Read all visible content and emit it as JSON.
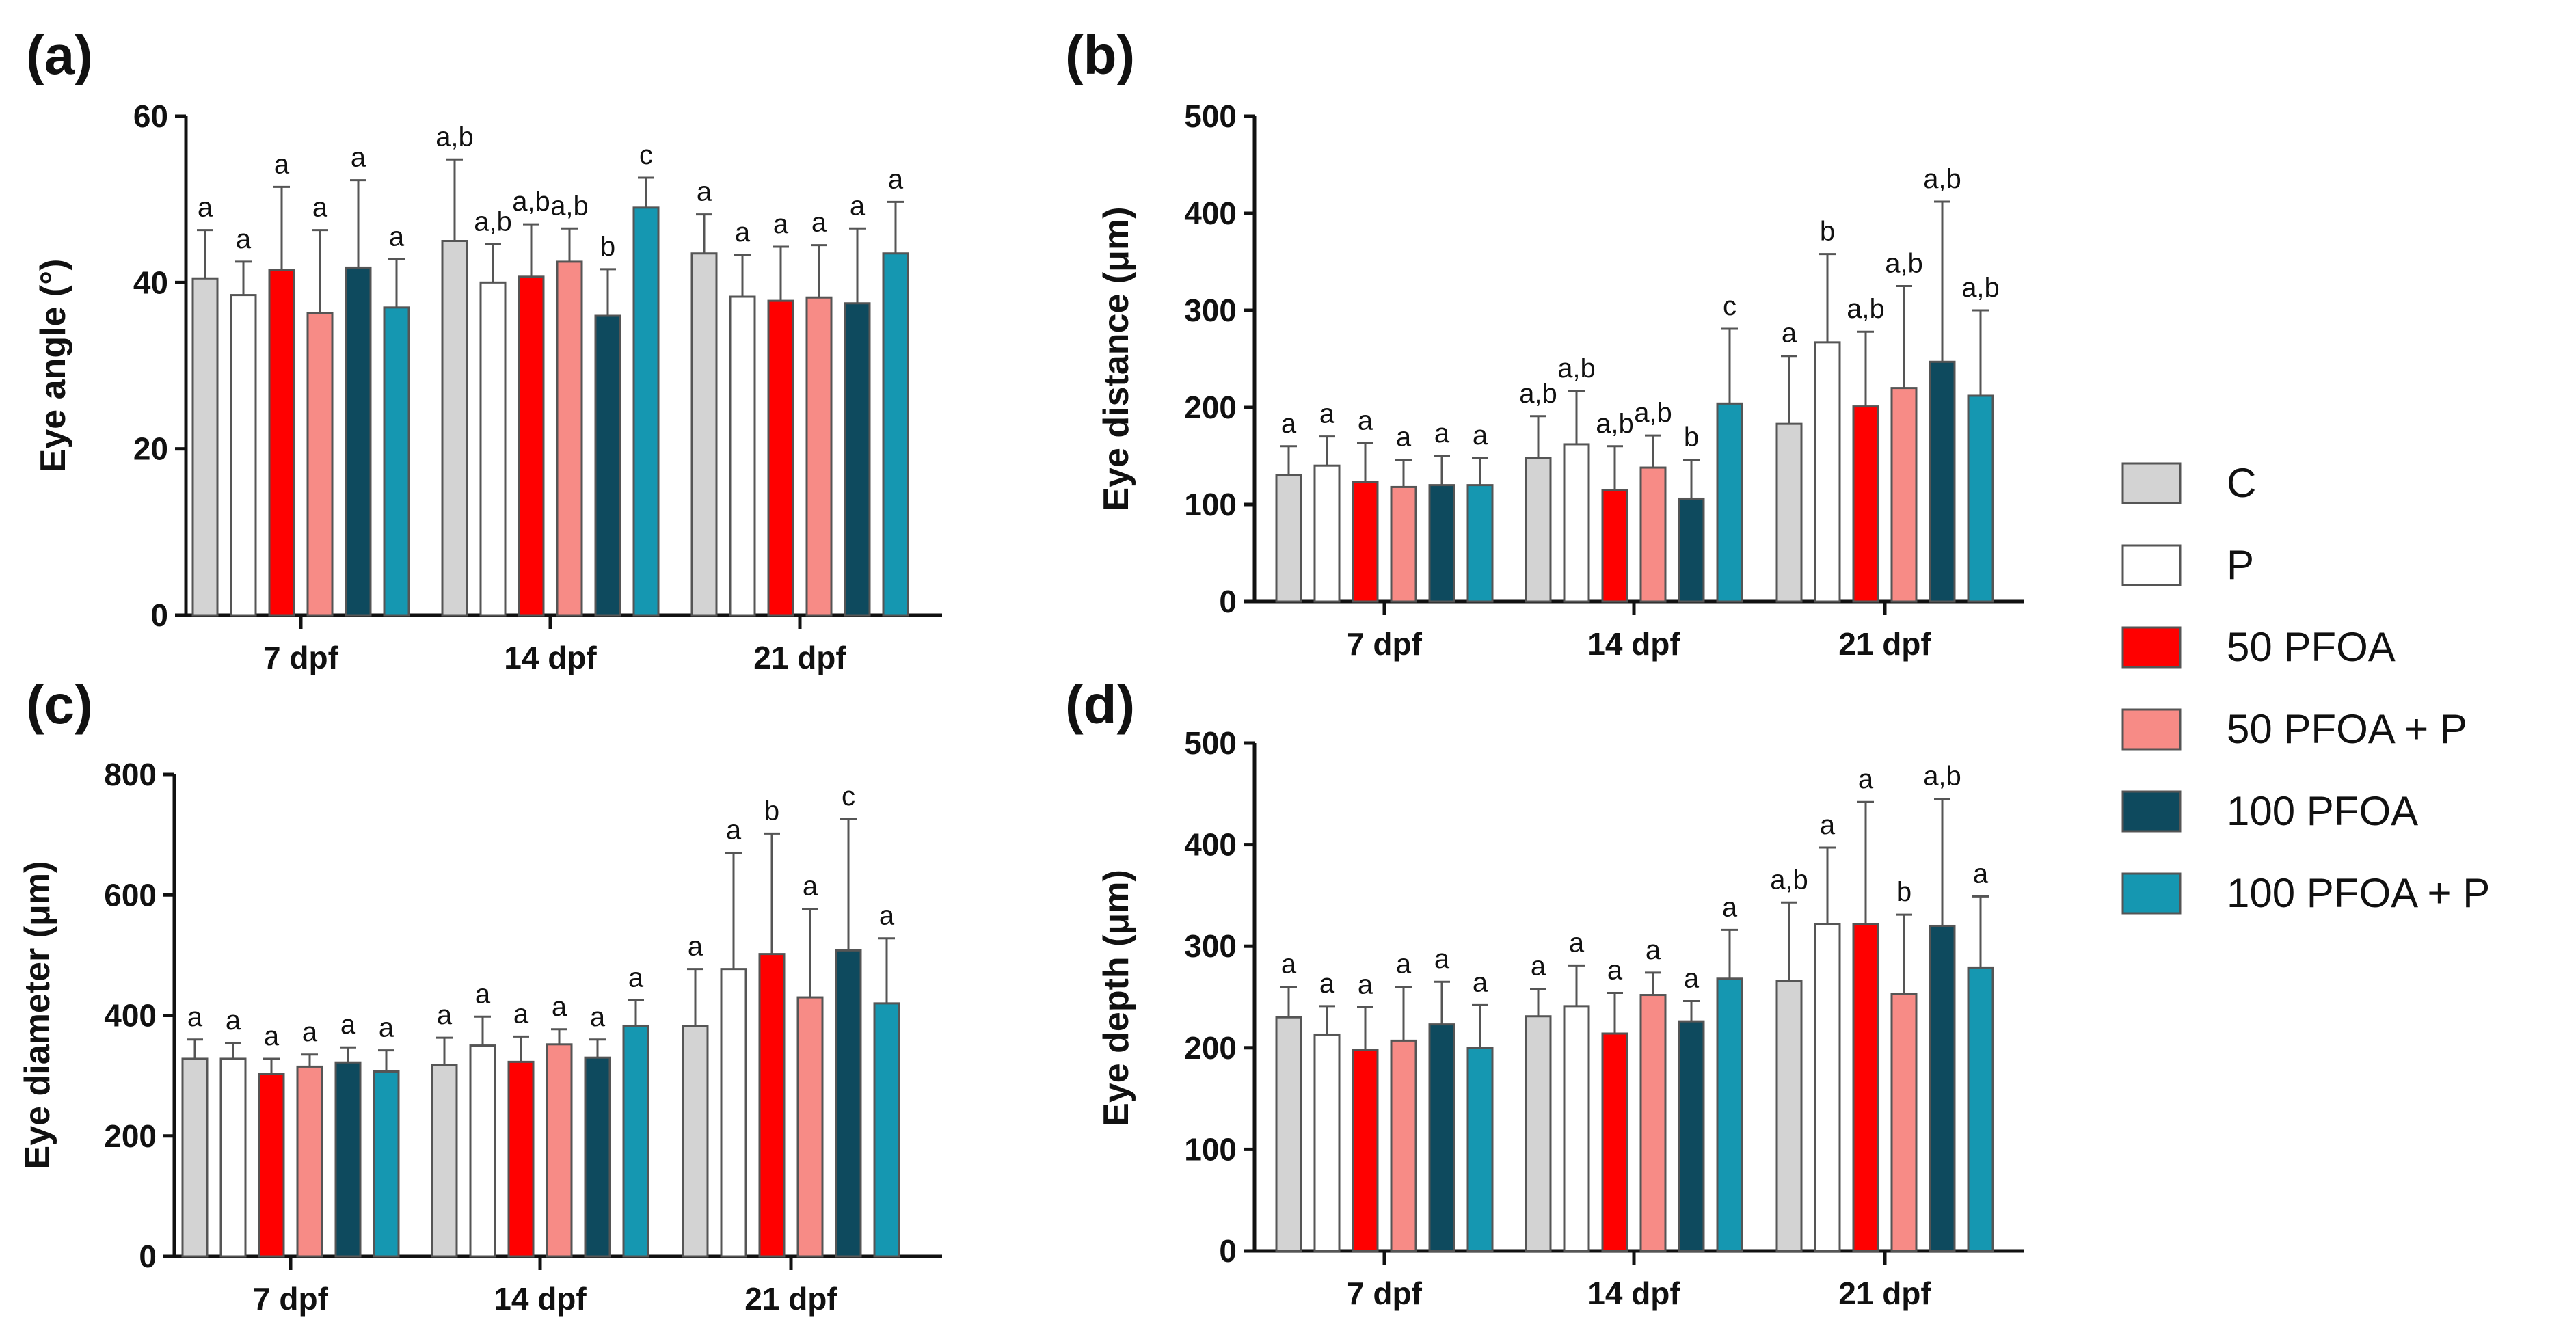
{
  "chart_data": [
    {
      "panel": "(a)",
      "type": "bar",
      "ylabel": "Eye angle (°)",
      "ylim": [
        0,
        60
      ],
      "yticks": [
        0,
        20,
        40,
        60
      ],
      "categories": [
        "7 dpf",
        "14 dpf",
        "21 dpf"
      ],
      "series": [
        {
          "name": "C",
          "values": [
            40.5,
            45,
            43.5
          ],
          "errors": [
            5.8,
            9.8,
            4.7
          ],
          "letters": [
            "a",
            "a,b",
            "a"
          ]
        },
        {
          "name": "P",
          "values": [
            38.5,
            40,
            38.3
          ],
          "errors": [
            4,
            4.6,
            5
          ],
          "letters": [
            "a",
            "a,b",
            "a"
          ]
        },
        {
          "name": "50 PFOA",
          "values": [
            41.5,
            40.7,
            37.8
          ],
          "errors": [
            10,
            6.3,
            6.5
          ],
          "letters": [
            "a",
            "a,b",
            "a"
          ]
        },
        {
          "name": "50 PFOA + P",
          "values": [
            36.3,
            42.5,
            38.2
          ],
          "errors": [
            10,
            4,
            6.3
          ],
          "letters": [
            "a",
            "a,b",
            "a"
          ]
        },
        {
          "name": "100 PFOA",
          "values": [
            41.8,
            36,
            37.5
          ],
          "errors": [
            10.5,
            5.6,
            9
          ],
          "letters": [
            "a",
            "b",
            "a"
          ]
        },
        {
          "name": "100 PFOA + P",
          "values": [
            37,
            49,
            43.5
          ],
          "errors": [
            5.8,
            3.6,
            6.2
          ],
          "letters": [
            "a",
            "c",
            "a"
          ]
        }
      ]
    },
    {
      "panel": "(b)",
      "type": "bar",
      "ylabel": "Eye distance (μm)",
      "ylim": [
        0,
        500
      ],
      "yticks": [
        0,
        100,
        200,
        300,
        400,
        500
      ],
      "categories": [
        "7 dpf",
        "14 dpf",
        "21 dpf"
      ],
      "series": [
        {
          "name": "C",
          "values": [
            130,
            148,
            183
          ],
          "errors": [
            30,
            43,
            70
          ],
          "letters": [
            "a",
            "a,b",
            "a"
          ]
        },
        {
          "name": "P",
          "values": [
            140,
            162,
            267
          ],
          "errors": [
            30,
            55,
            91
          ],
          "letters": [
            "a",
            "a,b",
            "b"
          ]
        },
        {
          "name": "50 PFOA",
          "values": [
            123,
            115,
            201
          ],
          "errors": [
            40,
            45,
            77
          ],
          "letters": [
            "a",
            "a,b",
            "a,b"
          ]
        },
        {
          "name": "50 PFOA + P",
          "values": [
            118,
            138,
            220
          ],
          "errors": [
            28,
            33,
            105
          ],
          "letters": [
            "a",
            "a,b",
            "a,b"
          ]
        },
        {
          "name": "100 PFOA",
          "values": [
            120,
            106,
            247
          ],
          "errors": [
            30,
            40,
            165
          ],
          "letters": [
            "a",
            "b",
            "a,b"
          ]
        },
        {
          "name": "100 PFOA + P",
          "values": [
            120,
            204,
            212
          ],
          "errors": [
            28,
            77,
            88
          ],
          "letters": [
            "a",
            "c",
            "a,b"
          ]
        }
      ]
    },
    {
      "panel": "(c)",
      "type": "bar",
      "ylabel": "Eye diameter (μm)",
      "ylim": [
        0,
        800
      ],
      "yticks": [
        0,
        200,
        400,
        600,
        800
      ],
      "categories": [
        "7 dpf",
        "14 dpf",
        "21 dpf"
      ],
      "series": [
        {
          "name": "C",
          "values": [
            328,
            318,
            382
          ],
          "errors": [
            32,
            45,
            95
          ],
          "letters": [
            "a",
            "a",
            "a"
          ]
        },
        {
          "name": "P",
          "values": [
            328,
            350,
            477
          ],
          "errors": [
            26,
            48,
            193
          ],
          "letters": [
            "a",
            "a",
            "a"
          ]
        },
        {
          "name": "50 PFOA",
          "values": [
            303,
            323,
            502
          ],
          "errors": [
            25,
            42,
            200
          ],
          "letters": [
            "a",
            "a",
            "b"
          ]
        },
        {
          "name": "50 PFOA + P",
          "values": [
            315,
            352,
            430
          ],
          "errors": [
            20,
            25,
            147
          ],
          "letters": [
            "a",
            "a",
            "a"
          ]
        },
        {
          "name": "100 PFOA",
          "values": [
            322,
            330,
            508
          ],
          "errors": [
            25,
            30,
            218
          ],
          "letters": [
            "a",
            "a",
            "c"
          ]
        },
        {
          "name": "100 PFOA + P",
          "values": [
            307,
            383,
            420
          ],
          "errors": [
            35,
            42,
            108
          ],
          "letters": [
            "a",
            "a",
            "a"
          ]
        }
      ]
    },
    {
      "panel": "(d)",
      "type": "bar",
      "ylabel": "Eye depth (μm)",
      "ylim": [
        0,
        500
      ],
      "yticks": [
        0,
        100,
        200,
        300,
        400,
        500
      ],
      "categories": [
        "7 dpf",
        "14 dpf",
        "21 dpf"
      ],
      "series": [
        {
          "name": "C",
          "values": [
            230,
            231,
            266
          ],
          "errors": [
            30,
            27,
            77
          ],
          "letters": [
            "a",
            "a",
            "a,b"
          ]
        },
        {
          "name": "P",
          "values": [
            213,
            241,
            322
          ],
          "errors": [
            28,
            40,
            75
          ],
          "letters": [
            "a",
            "a",
            "a"
          ]
        },
        {
          "name": "50 PFOA",
          "values": [
            198,
            214,
            322
          ],
          "errors": [
            42,
            40,
            120
          ],
          "letters": [
            "a",
            "a",
            "a"
          ]
        },
        {
          "name": "50 PFOA + P",
          "values": [
            207,
            252,
            253
          ],
          "errors": [
            53,
            22,
            78
          ],
          "letters": [
            "a",
            "a",
            "b"
          ]
        },
        {
          "name": "100 PFOA",
          "values": [
            223,
            226,
            320
          ],
          "errors": [
            42,
            20,
            125
          ],
          "letters": [
            "a",
            "a",
            "a,b"
          ]
        },
        {
          "name": "100 PFOA + P",
          "values": [
            200,
            268,
            279
          ],
          "errors": [
            42,
            48,
            70
          ],
          "letters": [
            "a",
            "a",
            "a"
          ]
        }
      ]
    }
  ],
  "legend": {
    "placement": "right",
    "items": [
      {
        "label": "C",
        "color": "#d3d3d3"
      },
      {
        "label": "P",
        "color": "#ffffff"
      },
      {
        "label": "50 PFOA",
        "color": "#ff0000"
      },
      {
        "label": "50 PFOA + P",
        "color": "#f78b86"
      },
      {
        "label": "100 PFOA",
        "color": "#0e4a5e"
      },
      {
        "label": "100 PFOA + P",
        "color": "#1597b1"
      }
    ]
  }
}
